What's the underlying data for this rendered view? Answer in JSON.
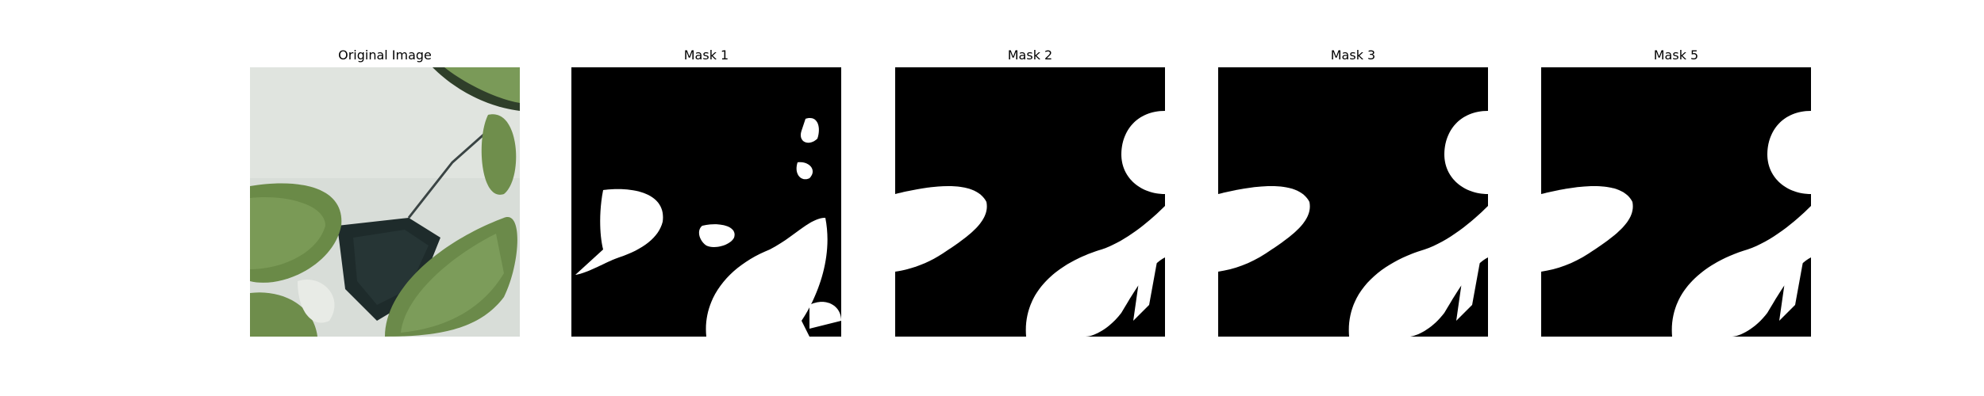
{
  "panels": [
    {
      "title": "Original Image"
    },
    {
      "title": "Mask 1"
    },
    {
      "title": "Mask 2"
    },
    {
      "title": "Mask 3"
    },
    {
      "title": "Mask 5"
    }
  ],
  "colors": {
    "background": "#ffffff",
    "mask_background": "#000000",
    "mask_foreground": "#ffffff",
    "leaf_green": "#6b8a4a",
    "leaf_dark": "#4f6c35",
    "surface_gray": "#d6dad6",
    "seam_dark": "#1f2a2a"
  }
}
